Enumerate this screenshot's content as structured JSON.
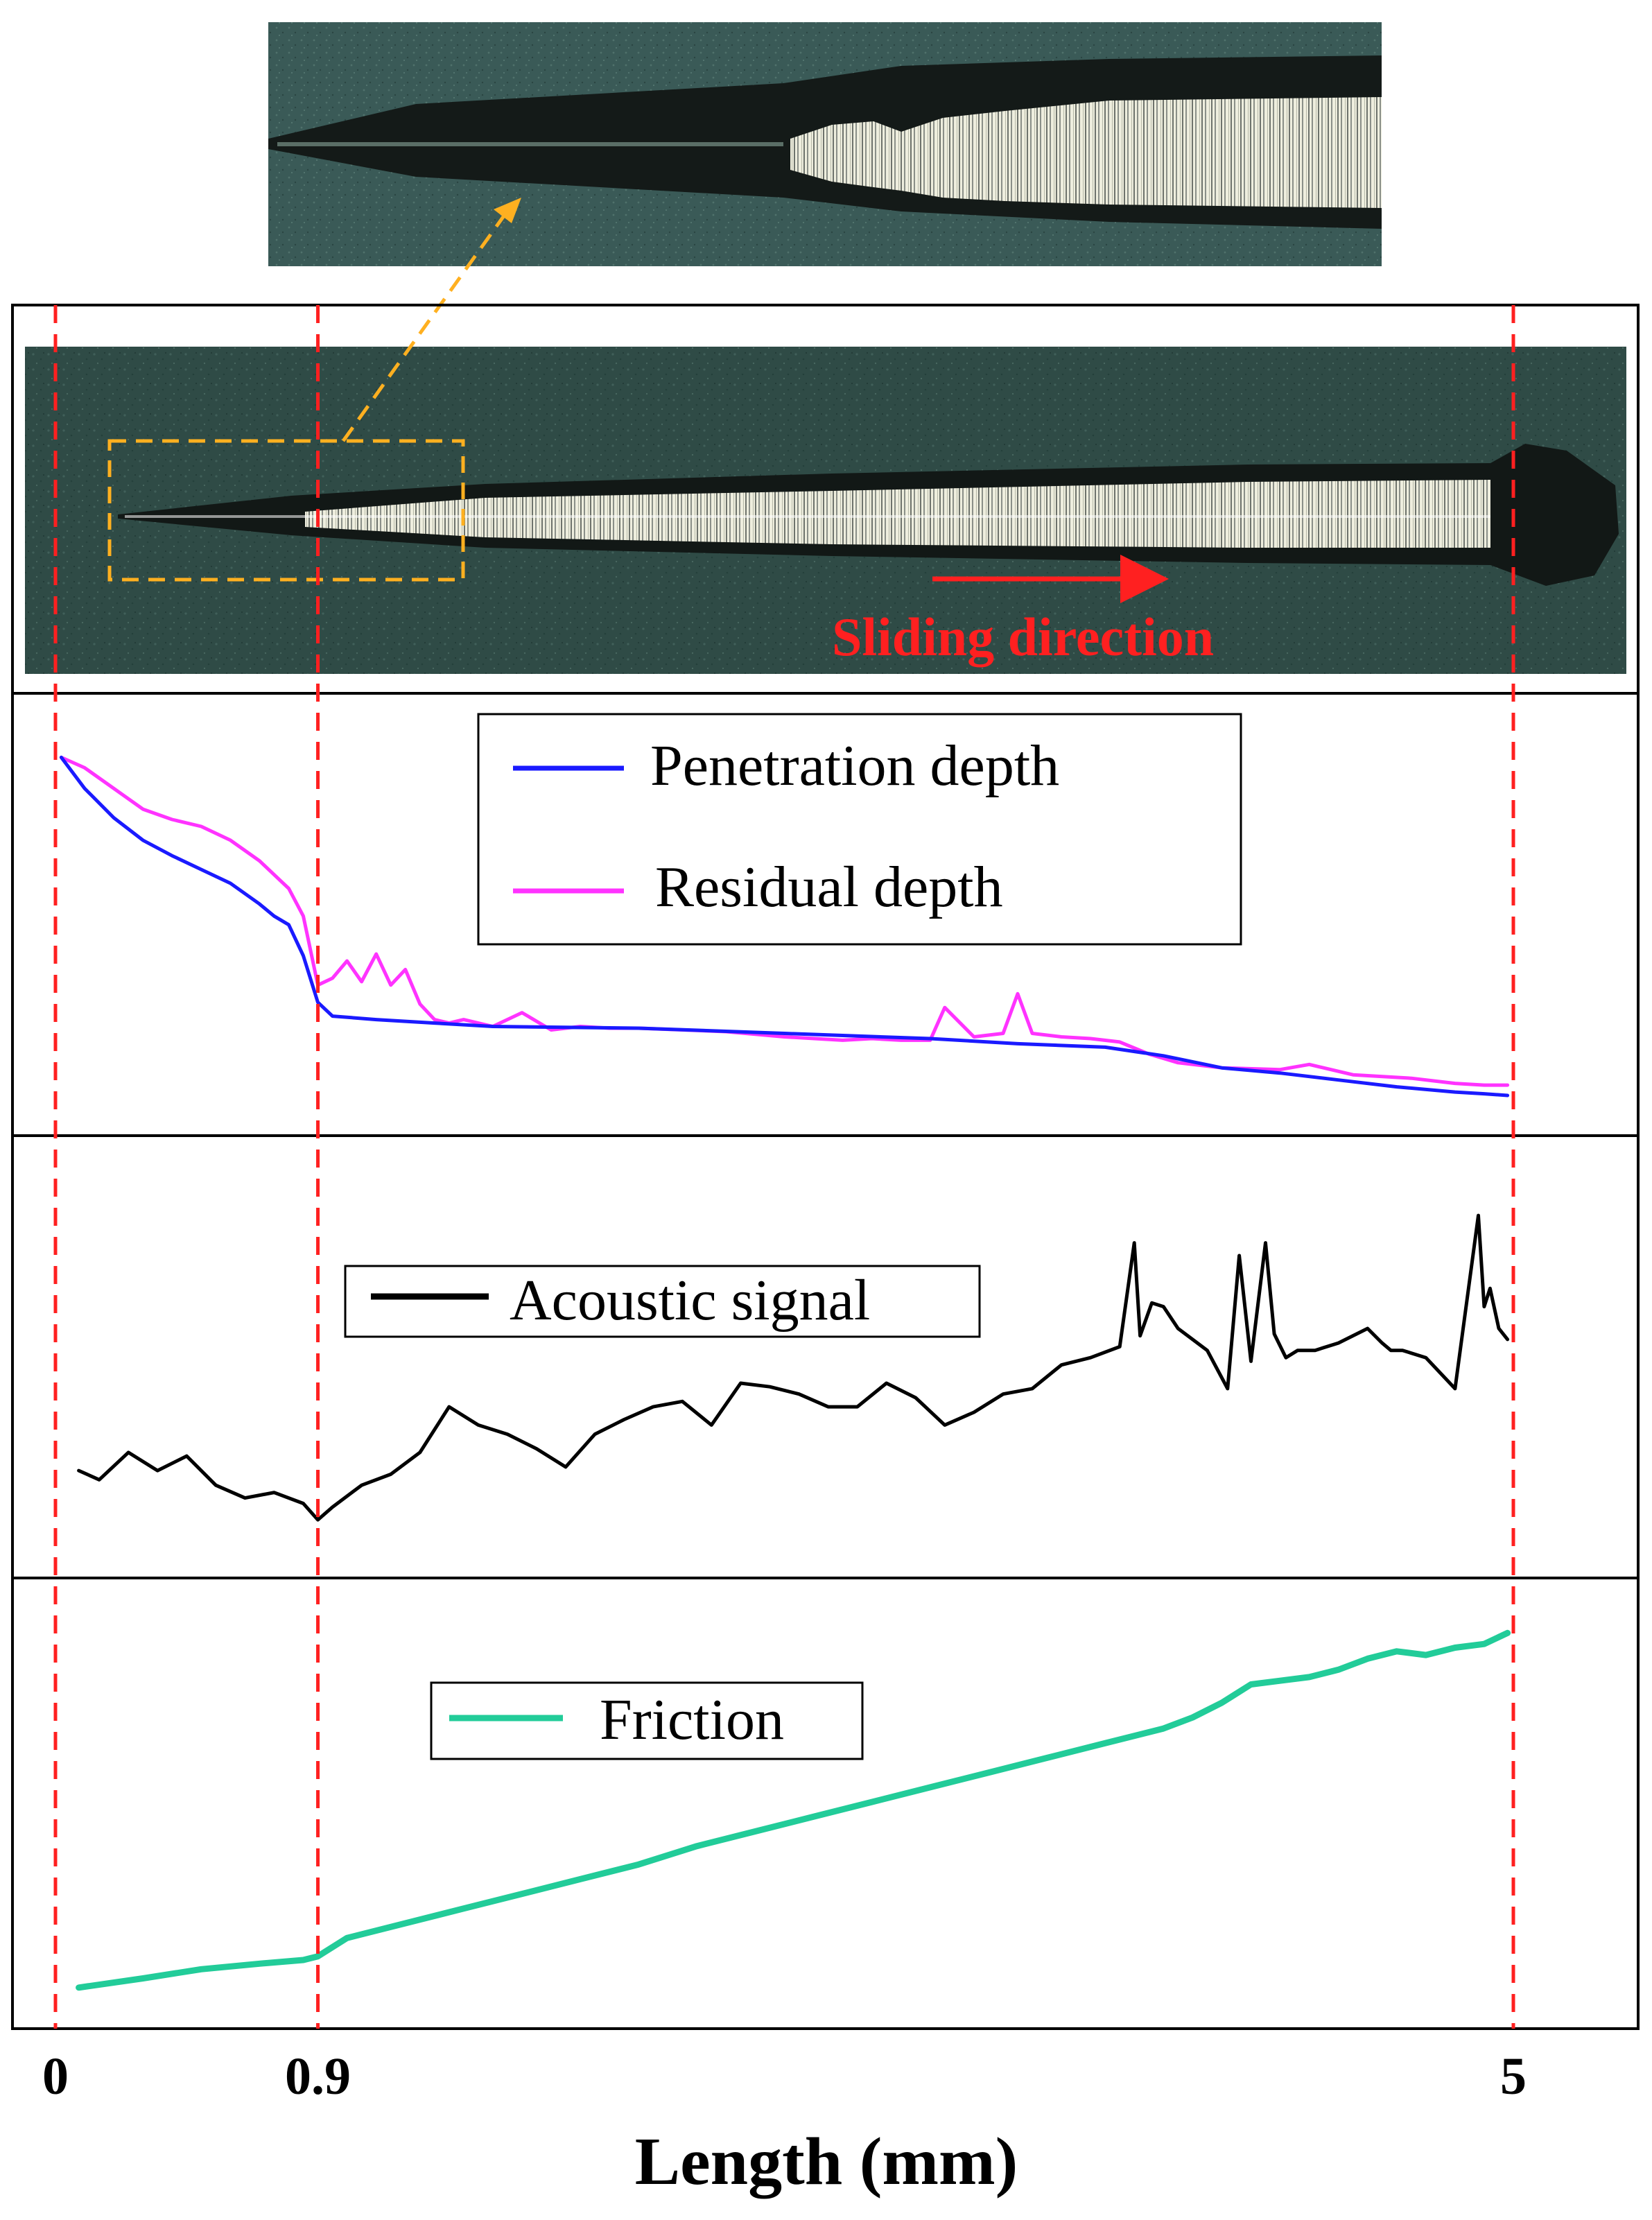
{
  "annotation": {
    "sliding_direction": "Sliding direction"
  },
  "colors": {
    "penetration": "#1a1aff",
    "residual": "#ff33ff",
    "acoustic": "#000000",
    "friction": "#22cc99",
    "guide": "#ff2020",
    "zoom_box": "#ffb020",
    "micrograph_bg": "#2e4a45",
    "scratch_bright": "#f4f4ea"
  },
  "chart_data": [
    {
      "type": "line",
      "legend_placement": "top-center",
      "xlim": [
        0,
        5
      ],
      "x_ticks": [
        0,
        0.9,
        5
      ],
      "x_tick_labels": [
        "0",
        "0.9",
        "5"
      ],
      "xlabel": "Length (mm)",
      "y_axis_shown": false,
      "grid": false,
      "series": [
        {
          "name": "Penetration depth",
          "color": "#1a1aff",
          "x": [
            0.02,
            0.1,
            0.2,
            0.3,
            0.4,
            0.5,
            0.6,
            0.7,
            0.75,
            0.8,
            0.85,
            0.9,
            0.95,
            1.1,
            1.3,
            1.5,
            2.0,
            2.5,
            3.0,
            3.3,
            3.6,
            3.8,
            4.0,
            4.2,
            4.4,
            4.6,
            4.8,
            4.9,
            4.98
          ],
          "y": [
            2.9,
            2.72,
            2.55,
            2.42,
            2.33,
            2.25,
            2.17,
            2.05,
            1.98,
            1.93,
            1.75,
            1.48,
            1.4,
            1.38,
            1.36,
            1.34,
            1.33,
            1.3,
            1.27,
            1.24,
            1.22,
            1.17,
            1.1,
            1.07,
            1.03,
            0.99,
            0.96,
            0.95,
            0.94
          ]
        },
        {
          "name": "Residual depth",
          "color": "#ff33ff",
          "x": [
            0.02,
            0.1,
            0.2,
            0.3,
            0.4,
            0.5,
            0.6,
            0.7,
            0.75,
            0.8,
            0.85,
            0.9,
            0.95,
            1.0,
            1.05,
            1.1,
            1.15,
            1.2,
            1.25,
            1.3,
            1.35,
            1.4,
            1.5,
            1.6,
            1.7,
            1.75,
            1.8,
            1.9,
            2.0,
            2.3,
            2.5,
            2.7,
            2.8,
            2.9,
            3.0,
            3.05,
            3.15,
            3.25,
            3.3,
            3.35,
            3.45,
            3.55,
            3.65,
            3.75,
            3.85,
            4.0,
            4.2,
            4.3,
            4.45,
            4.65,
            4.8,
            4.9,
            4.98
          ],
          "y": [
            2.9,
            2.84,
            2.72,
            2.6,
            2.54,
            2.5,
            2.42,
            2.3,
            2.22,
            2.14,
            1.98,
            1.58,
            1.62,
            1.72,
            1.6,
            1.76,
            1.58,
            1.67,
            1.47,
            1.38,
            1.36,
            1.38,
            1.34,
            1.42,
            1.32,
            1.33,
            1.34,
            1.33,
            1.33,
            1.31,
            1.28,
            1.26,
            1.27,
            1.26,
            1.26,
            1.45,
            1.28,
            1.3,
            1.53,
            1.3,
            1.28,
            1.27,
            1.25,
            1.18,
            1.13,
            1.1,
            1.09,
            1.12,
            1.06,
            1.04,
            1.01,
            1.0,
            1.0
          ]
        }
      ]
    },
    {
      "type": "line",
      "legend_placement": "top-center",
      "xlim": [
        0,
        5
      ],
      "xlabel": "Length (mm)",
      "y_axis_shown": false,
      "grid": false,
      "series": [
        {
          "name": "Acoustic signal",
          "color": "#000000",
          "x": [
            0.08,
            0.15,
            0.25,
            0.35,
            0.45,
            0.55,
            0.65,
            0.75,
            0.85,
            0.9,
            0.95,
            1.05,
            1.15,
            1.25,
            1.35,
            1.45,
            1.55,
            1.65,
            1.75,
            1.85,
            1.95,
            2.05,
            2.15,
            2.25,
            2.35,
            2.45,
            2.55,
            2.65,
            2.75,
            2.85,
            2.95,
            3.05,
            3.15,
            3.25,
            3.35,
            3.45,
            3.55,
            3.65,
            3.7,
            3.72,
            3.76,
            3.8,
            3.85,
            3.9,
            3.95,
            4.02,
            4.06,
            4.1,
            4.15,
            4.18,
            4.22,
            4.26,
            4.32,
            4.4,
            4.5,
            4.55,
            4.58,
            4.62,
            4.7,
            4.8,
            4.88,
            4.9,
            4.92,
            4.95,
            4.98
          ],
          "y": [
            1.2,
            1.15,
            1.3,
            1.2,
            1.28,
            1.12,
            1.05,
            1.08,
            1.02,
            0.93,
            1.0,
            1.12,
            1.18,
            1.3,
            1.55,
            1.45,
            1.4,
            1.32,
            1.22,
            1.4,
            1.48,
            1.55,
            1.58,
            1.45,
            1.68,
            1.66,
            1.62,
            1.55,
            1.55,
            1.68,
            1.6,
            1.45,
            1.52,
            1.62,
            1.65,
            1.78,
            1.82,
            1.88,
            2.45,
            1.94,
            2.12,
            2.1,
            1.98,
            1.92,
            1.86,
            1.65,
            2.38,
            1.8,
            2.45,
            1.95,
            1.82,
            1.86,
            1.86,
            1.9,
            1.98,
            1.9,
            1.86,
            1.86,
            1.82,
            1.65,
            2.6,
            2.1,
            2.2,
            1.98,
            1.92
          ]
        }
      ]
    },
    {
      "type": "line",
      "legend_placement": "top-center",
      "xlim": [
        0,
        5
      ],
      "xlabel": "Length (mm)",
      "y_axis_shown": false,
      "grid": false,
      "series": [
        {
          "name": "Friction",
          "color": "#22cc99",
          "x": [
            0.08,
            0.3,
            0.5,
            0.7,
            0.85,
            0.9,
            1.0,
            1.2,
            1.4,
            1.6,
            1.8,
            2.0,
            2.2,
            2.4,
            2.6,
            2.8,
            3.0,
            3.2,
            3.4,
            3.6,
            3.8,
            3.9,
            4.0,
            4.1,
            4.2,
            4.3,
            4.4,
            4.5,
            4.6,
            4.7,
            4.8,
            4.9,
            4.98
          ],
          "y": [
            0.05,
            0.1,
            0.15,
            0.18,
            0.2,
            0.22,
            0.32,
            0.4,
            0.48,
            0.56,
            0.64,
            0.72,
            0.82,
            0.9,
            0.98,
            1.06,
            1.14,
            1.22,
            1.3,
            1.38,
            1.46,
            1.52,
            1.6,
            1.7,
            1.72,
            1.74,
            1.78,
            1.84,
            1.88,
            1.86,
            1.9,
            1.92,
            1.98
          ]
        }
      ]
    }
  ]
}
